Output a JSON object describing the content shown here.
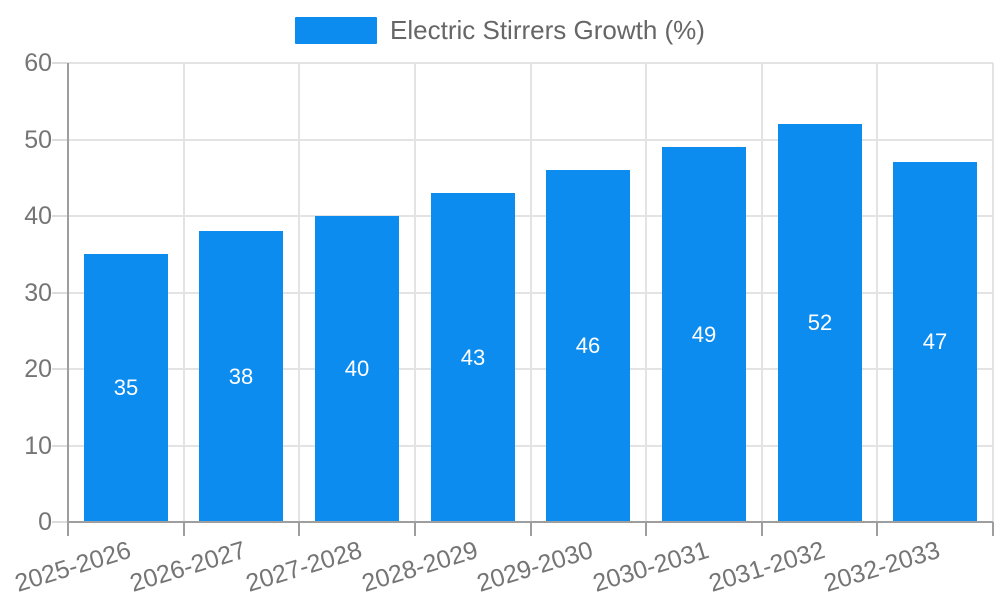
{
  "legend": {
    "label": "Electric Stirrers Growth (%)",
    "swatch_color": "#0d8cf0",
    "text_color": "#666666"
  },
  "chart_data": {
    "type": "bar",
    "title": "Electric Stirrers Growth (%)",
    "categories": [
      "2025-2026",
      "2026-2027",
      "2027-2028",
      "2028-2029",
      "2029-2030",
      "2030-2031",
      "2031-2032",
      "2032-2033"
    ],
    "values": [
      35,
      38,
      40,
      43,
      46,
      49,
      52,
      47
    ],
    "value_labels": [
      "35",
      "38",
      "40",
      "43",
      "46",
      "49",
      "52",
      "47"
    ],
    "ytick_labels": [
      "0",
      "10",
      "20",
      "30",
      "40",
      "50",
      "60"
    ],
    "yticks": [
      0,
      10,
      20,
      30,
      40,
      50,
      60
    ],
    "ylim": [
      0,
      60
    ],
    "xlabel": "",
    "ylabel": "",
    "bar_color": "#0d8cf0",
    "value_label_color": "#ffffff",
    "grid": true,
    "legend_position": "top",
    "x_tick_rotation_deg": -17
  },
  "axis_style": {
    "axis_color": "#9e9e9e",
    "grid_color": "#e3e3e3",
    "y_tick_color": "#dcdcdc",
    "x_tick_color": "#9e9e9e",
    "tick_label_color": "#757575"
  }
}
